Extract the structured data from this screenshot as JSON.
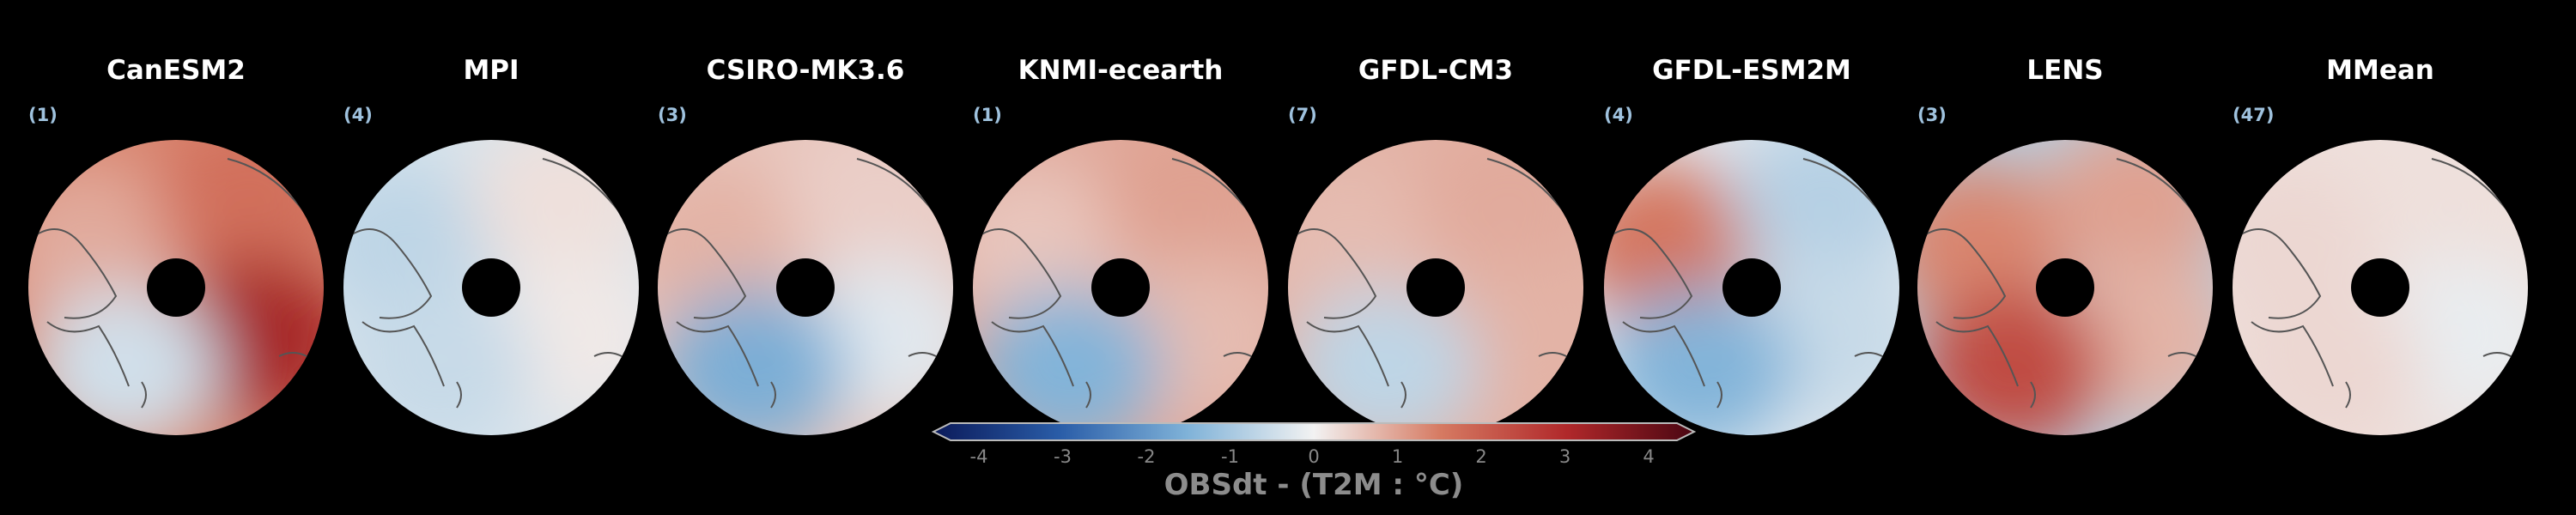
{
  "panels": [
    {
      "title": "CanESM2",
      "count": "(1)",
      "anomaly": [
        0.8,
        1.5,
        2.8,
        -0.4,
        1.2
      ]
    },
    {
      "title": "MPI",
      "count": "(4)",
      "anomaly": [
        -0.6,
        0.2,
        0.1,
        -0.5,
        -0.3
      ]
    },
    {
      "title": "CSIRO-MK3.6",
      "count": "(3)",
      "anomaly": [
        0.7,
        0.4,
        -0.2,
        -1.4,
        0.5
      ]
    },
    {
      "title": "KNMI-ecearth",
      "count": "(1)",
      "anomaly": [
        0.5,
        0.9,
        0.6,
        -1.3,
        0.8
      ]
    },
    {
      "title": "GFDL-CM3",
      "count": "(7)",
      "anomaly": [
        0.6,
        0.8,
        0.7,
        -0.6,
        0.7
      ]
    },
    {
      "title": "GFDL-ESM2M",
      "count": "(4)",
      "anomaly": [
        1.4,
        -0.7,
        -0.5,
        -1.3,
        -0.2
      ]
    },
    {
      "title": "LENS",
      "count": "(3)",
      "anomaly": [
        1.2,
        0.9,
        0.7,
        2.1,
        -0.7
      ]
    },
    {
      "title": "MMean",
      "count": "(47)",
      "anomaly": [
        0.3,
        0.2,
        -0.1,
        0.3,
        0.2
      ]
    }
  ],
  "colorbar": {
    "min": -4,
    "max": 4,
    "ticks": [
      "-4",
      "-3",
      "-2",
      "-1",
      "0",
      "1",
      "2",
      "3",
      "4"
    ],
    "label": "OBSdt - (T2M : °C)",
    "colors": [
      "#0b1a5a",
      "#2a5da8",
      "#7fb2d8",
      "#f2f2f2",
      "#d67a62",
      "#b0282a",
      "#4a0612"
    ]
  }
}
